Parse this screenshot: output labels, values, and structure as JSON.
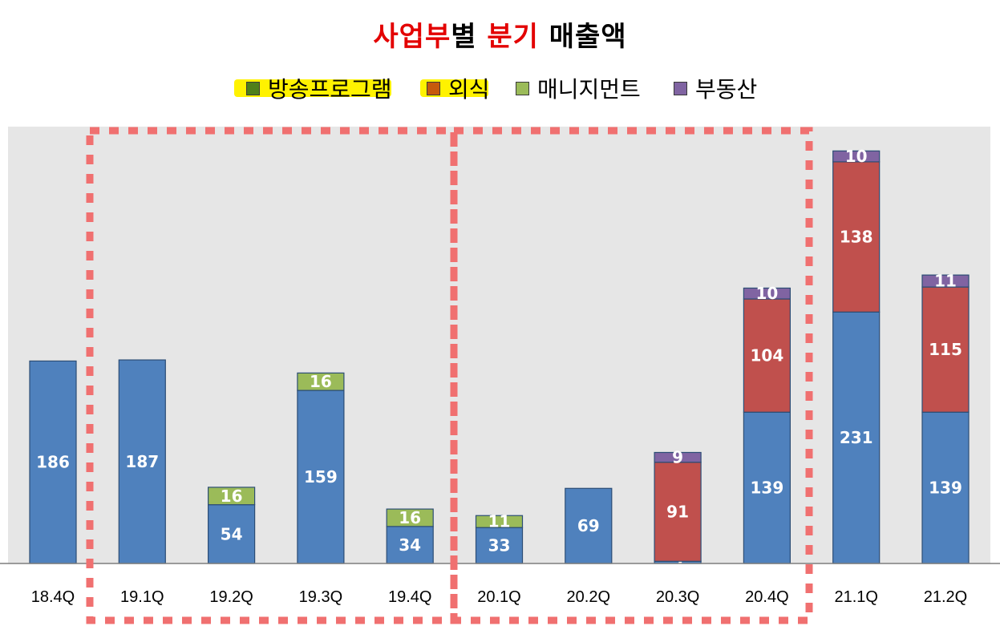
{
  "title": {
    "part1": "사업부",
    "part2": "별 ",
    "part3": "분기",
    "part4": " 매출액"
  },
  "colors": {
    "title_red": "#e30000",
    "title_black": "#000000",
    "broadcast": "#4f7f1a",
    "dining": "#c65a0c",
    "management": "#9bbb59",
    "realestate": "#8064a2",
    "base_series": "#4f81bd",
    "dining_bar": "#c0504d",
    "plot_bg": "#e6e6e6",
    "dashed_box": "#f07070",
    "highlight": "#fff200"
  },
  "legend": {
    "items": [
      {
        "label": "방송프로그램",
        "color": "#4f7f1a",
        "highlighted": true
      },
      {
        "label": "외식",
        "color": "#c65a0c",
        "highlighted": true
      },
      {
        "label": "매니지먼트",
        "color": "#9bbb59",
        "highlighted": false
      },
      {
        "label": "부동산",
        "color": "#8064a2",
        "highlighted": false
      }
    ]
  },
  "chart_data": {
    "type": "bar",
    "stacked": true,
    "title": "사업부별 분기 매출액",
    "categories": [
      "18.4Q",
      "19.1Q",
      "19.2Q",
      "19.3Q",
      "19.4Q",
      "20.1Q",
      "20.2Q",
      "20.3Q",
      "20.4Q",
      "21.1Q",
      "21.2Q"
    ],
    "series": [
      {
        "values": [
          186,
          187,
          54,
          159,
          34,
          33,
          69,
          2,
          139,
          231,
          139
        ],
        "color": "#4f81bd"
      },
      {
        "name": "외식",
        "values": [
          null,
          null,
          null,
          null,
          null,
          null,
          null,
          91,
          104,
          138,
          115
        ],
        "color": "#c0504d"
      },
      {
        "name": "매니지먼트",
        "values": [
          null,
          null,
          16,
          16,
          16,
          11,
          null,
          null,
          null,
          null,
          null
        ],
        "color": "#9bbb59"
      },
      {
        "name": "부동산",
        "values": [
          null,
          null,
          null,
          null,
          null,
          null,
          null,
          9,
          10,
          10,
          11
        ],
        "color": "#8064a2"
      }
    ],
    "ylim": [
      0,
      400
    ],
    "grid": false,
    "legend_position": "top",
    "annotations": [
      "dashed box around 19.1Q–19.4Q",
      "dashed box around 20.1Q–20.4Q"
    ]
  }
}
